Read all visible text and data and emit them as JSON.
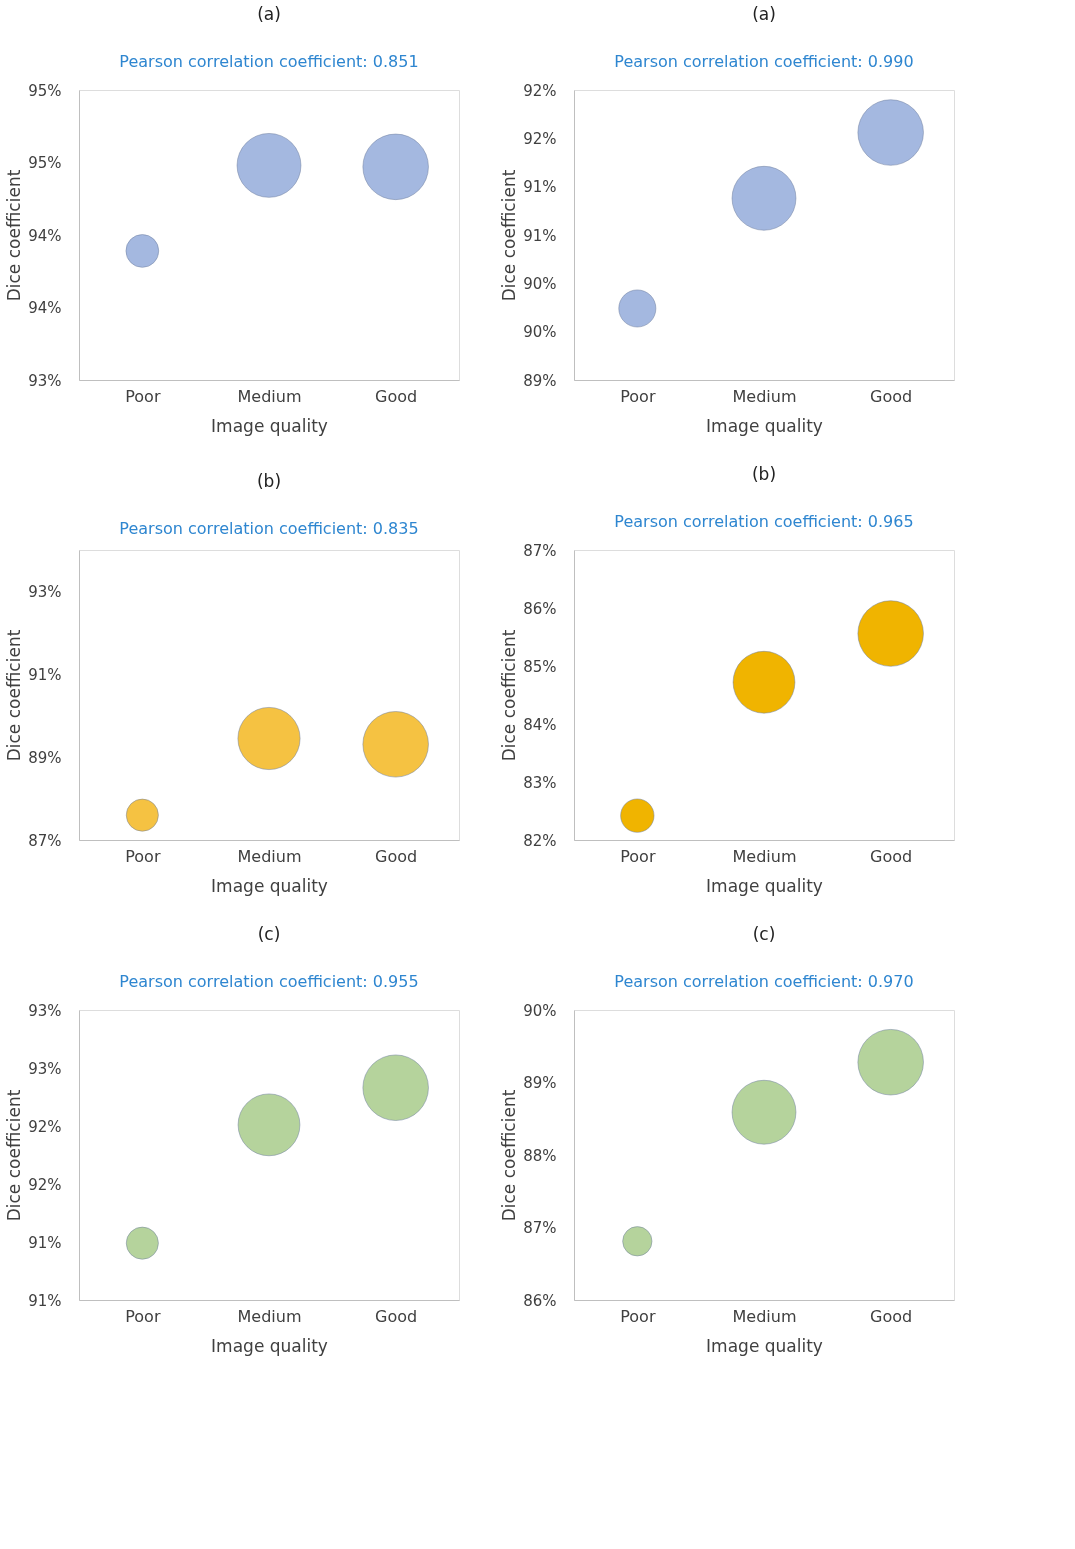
{
  "chart_data": [
    {
      "type": "bubble",
      "title": "(a)",
      "subtitle": "Pearson correlation coefficient: 0.851",
      "xlabel": "Image quality",
      "ylabel": "Dice  coefficient",
      "categories": [
        "Poor",
        "Medium",
        "Good"
      ],
      "values": [
        93.89,
        94.48,
        94.47
      ],
      "sizes": [
        0.25,
        0.95,
        1
      ],
      "color": "#a4b8e0",
      "ylim": [
        93,
        95
      ],
      "yticks": [
        {
          "value": 93,
          "label": "93%"
        },
        {
          "value": 93.5,
          "label": "94%"
        },
        {
          "value": 94,
          "label": "94%"
        },
        {
          "value": 94.5,
          "label": "95%"
        },
        {
          "value": 95,
          "label": "95%"
        }
      ],
      "grid": false
    },
    {
      "type": "bubble",
      "title": "(a)",
      "subtitle": "Pearson correlation coefficient: 0.990",
      "xlabel": "Image quality",
      "ylabel": "Dice  coefficient",
      "categories": [
        "Poor",
        "Medium",
        "Good"
      ],
      "values": [
        89.74,
        90.88,
        91.56
      ],
      "sizes": [
        0.32,
        0.95,
        1
      ],
      "color": "#a4b8e0",
      "ylim": [
        89,
        92
      ],
      "yticks": [
        {
          "value": 89,
          "label": "89%"
        },
        {
          "value": 89.5,
          "label": "90%"
        },
        {
          "value": 90,
          "label": "90%"
        },
        {
          "value": 90.5,
          "label": "91%"
        },
        {
          "value": 91,
          "label": "91%"
        },
        {
          "value": 91.5,
          "label": "92%"
        },
        {
          "value": 92,
          "label": "92%"
        }
      ],
      "grid": false
    },
    {
      "type": "bubble",
      "title": "(b)",
      "subtitle": "Pearson correlation coefficient: 0.835",
      "xlabel": "Image quality",
      "ylabel": "Dice  coefficient",
      "categories": [
        "Poor",
        "Medium",
        "Good"
      ],
      "values": [
        87.6,
        89.45,
        89.31
      ],
      "sizes": [
        0.24,
        0.9,
        1
      ],
      "color": "#f5c242",
      "ylim": [
        87,
        94
      ],
      "yticks": [
        {
          "value": 87,
          "label": "87%"
        },
        {
          "value": 89,
          "label": "89%"
        },
        {
          "value": 91,
          "label": "91%"
        },
        {
          "value": 93,
          "label": "93%"
        }
      ],
      "grid": false
    },
    {
      "type": "bubble",
      "title": "(b)",
      "subtitle": "Pearson correlation coefficient: 0.965",
      "xlabel": "Image quality",
      "ylabel": "Dice coefficient",
      "categories": [
        "Poor",
        "Medium",
        "Good"
      ],
      "values": [
        82.42,
        84.72,
        85.56
      ],
      "sizes": [
        0.26,
        0.89,
        1
      ],
      "color": "#f0b400",
      "ylim": [
        82,
        87
      ],
      "yticks": [
        {
          "value": 82,
          "label": "82%"
        },
        {
          "value": 83,
          "label": "83%"
        },
        {
          "value": 84,
          "label": "84%"
        },
        {
          "value": 85,
          "label": "85%"
        },
        {
          "value": 86,
          "label": "86%"
        },
        {
          "value": 87,
          "label": "87%"
        }
      ],
      "grid": false
    },
    {
      "type": "bubble",
      "title": "(c)",
      "subtitle": "Pearson correlation coefficient: 0.955",
      "xlabel": "Image quality",
      "ylabel": "Dice  coefficient",
      "categories": [
        "Poor",
        "Medium",
        "Good"
      ],
      "values": [
        90.99,
        92.01,
        92.33
      ],
      "sizes": [
        0.24,
        0.89,
        1
      ],
      "color": "#b5d39c",
      "ylim": [
        90.5,
        93
      ],
      "yticks": [
        {
          "value": 90.5,
          "label": "91%"
        },
        {
          "value": 91,
          "label": "91%"
        },
        {
          "value": 91.5,
          "label": "92%"
        },
        {
          "value": 92,
          "label": "92%"
        },
        {
          "value": 92.5,
          "label": "93%"
        },
        {
          "value": 93,
          "label": "93%"
        }
      ],
      "grid": false
    },
    {
      "type": "bubble",
      "title": "(c)",
      "subtitle": "Pearson correlation coefficient: 0.970",
      "xlabel": "Image quality",
      "ylabel": "Dice  coefficient",
      "categories": [
        "Poor",
        "Medium",
        "Good"
      ],
      "values": [
        86.81,
        88.59,
        89.28
      ],
      "sizes": [
        0.2,
        0.95,
        1
      ],
      "color": "#b5d39c",
      "ylim": [
        86,
        90
      ],
      "yticks": [
        {
          "value": 86,
          "label": "86%"
        },
        {
          "value": 87,
          "label": "87%"
        },
        {
          "value": 88,
          "label": "88%"
        },
        {
          "value": 89,
          "label": "89%"
        },
        {
          "value": 90,
          "label": "90%"
        }
      ],
      "grid": false
    }
  ]
}
